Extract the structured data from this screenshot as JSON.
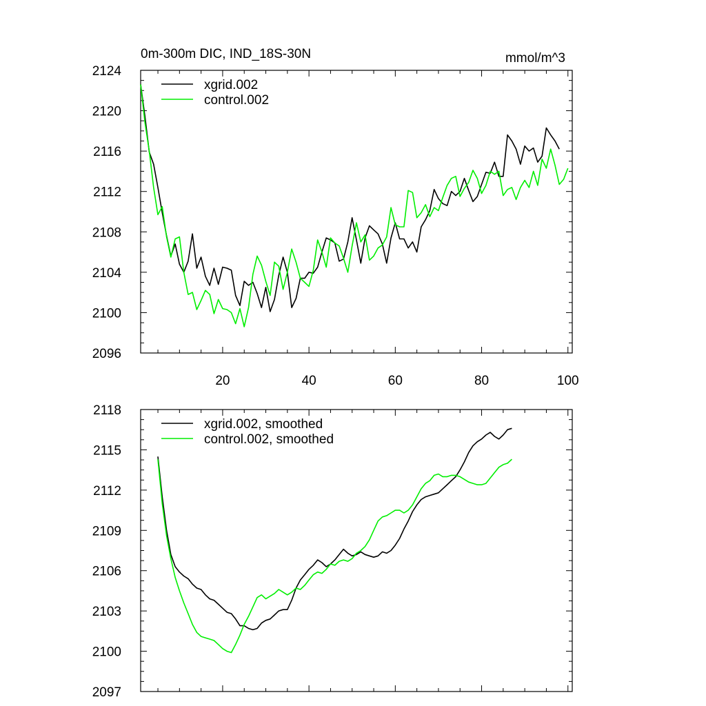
{
  "chart_data": [
    {
      "type": "line",
      "title": "0m-300m DIC, IND_18S-30N",
      "units": "mmol/m^3",
      "xlabel": "",
      "ylabel": "",
      "xlim": [
        1,
        101
      ],
      "ylim": [
        2096,
        2124
      ],
      "xticks": [
        20,
        40,
        60,
        80,
        100
      ],
      "yticks": [
        2096,
        2100,
        2104,
        2108,
        2112,
        2116,
        2120,
        2124
      ],
      "grid": false,
      "legend_position": "top-left",
      "series": [
        {
          "name": "xgrid.002",
          "color": "#000000",
          "x_start": 1,
          "values": [
            2122.6,
            2119.4,
            2115.9,
            2114.7,
            2112.4,
            2109.9,
            2107.6,
            2105.6,
            2106.8,
            2104.8,
            2104.0,
            2105.1,
            2107.8,
            2104.4,
            2105.5,
            2103.6,
            2102.7,
            2104.4,
            2102.8,
            2104.5,
            2104.4,
            2104.2,
            2101.7,
            2100.7,
            2103.1,
            2102.7,
            2103.0,
            2101.9,
            2100.5,
            2102.5,
            2100.1,
            2101.3,
            2103.7,
            2105.5,
            2104.0,
            2100.5,
            2101.4,
            2103.4,
            2103.4,
            2104.0,
            2103.9,
            2104.5,
            2106.0,
            2107.4,
            2107.2,
            2106.9,
            2105.1,
            2105.3,
            2107.0,
            2109.4,
            2107.2,
            2104.9,
            2107.4,
            2108.6,
            2108.2,
            2107.8,
            2106.8,
            2104.9,
            2107.4,
            2108.9,
            2107.3,
            2107.3,
            2106.4,
            2107.0,
            2106.0,
            2108.5,
            2109.2,
            2110.1,
            2112.2,
            2111.3,
            2110.8,
            2110.6,
            2112.0,
            2111.6,
            2112.0,
            2113.3,
            2112.1,
            2111.0,
            2111.5,
            2112.7,
            2113.9,
            2113.8,
            2114.9,
            2113.5,
            2113.5,
            2117.6,
            2117.0,
            2116.2,
            2114.7,
            2116.5,
            2116.0,
            2116.3,
            2114.9,
            2115.5,
            2118.3,
            2117.6,
            2117.0,
            2116.2
          ]
        },
        {
          "name": "control.002",
          "color": "#00ee00",
          "x_start": 1,
          "values": [
            2122.6,
            2118.8,
            2116.0,
            2112.4,
            2109.7,
            2110.5,
            2107.5,
            2105.5,
            2107.3,
            2107.5,
            2104.0,
            2101.8,
            2102.0,
            2100.3,
            2101.2,
            2102.2,
            2101.8,
            2099.9,
            2101.3,
            2100.4,
            2100.3,
            2100.0,
            2098.9,
            2100.4,
            2098.6,
            2100.5,
            2103.8,
            2105.6,
            2104.7,
            2103.1,
            2101.7,
            2105.0,
            2104.6,
            2102.3,
            2104.0,
            2106.3,
            2105.0,
            2103.4,
            2103.0,
            2102.6,
            2104.2,
            2107.2,
            2106.0,
            2104.5,
            2107.4,
            2106.9,
            2106.6,
            2105.4,
            2104.0,
            2106.6,
            2108.9,
            2107.0,
            2107.7,
            2105.2,
            2105.6,
            2106.4,
            2106.7,
            2107.5,
            2110.4,
            2108.7,
            2108.5,
            2108.5,
            2112.1,
            2111.9,
            2109.4,
            2109.9,
            2110.7,
            2109.5,
            2110.4,
            2110.1,
            2111.4,
            2112.6,
            2113.3,
            2113.5,
            2111.5,
            2112.3,
            2112.9,
            2114.1,
            2113.3,
            2111.8,
            2112.6,
            2114.0,
            2113.7,
            2114.0,
            2111.6,
            2112.2,
            2112.4,
            2111.2,
            2112.4,
            2113.1,
            2112.4,
            2114.0,
            2112.6,
            2115.2,
            2114.3,
            2116.2,
            2114.6,
            2112.7,
            2113.2,
            2114.3
          ]
        }
      ]
    },
    {
      "type": "line",
      "title": "",
      "xlabel": "",
      "ylabel": "",
      "xlim": [
        1,
        101
      ],
      "ylim": [
        2097,
        2118
      ],
      "xticks": [
        20,
        40,
        60,
        80,
        100
      ],
      "yticks": [
        2097,
        2100,
        2103,
        2106,
        2109,
        2112,
        2115,
        2118
      ],
      "grid": false,
      "legend_position": "top-left",
      "series": [
        {
          "name": "xgrid.002, smoothed",
          "color": "#000000",
          "x_start": 5,
          "values": [
            2114.5,
            2111.5,
            2109.0,
            2107.2,
            2106.3,
            2105.9,
            2105.6,
            2105.4,
            2105.0,
            2104.7,
            2104.6,
            2104.2,
            2103.9,
            2103.8,
            2103.5,
            2103.2,
            2102.9,
            2102.8,
            2102.4,
            2101.9,
            2101.9,
            2101.7,
            2101.6,
            2101.7,
            2102.1,
            2102.3,
            2102.4,
            2102.7,
            2103.0,
            2103.1,
            2103.1,
            2103.8,
            2104.7,
            2105.3,
            2105.7,
            2106.1,
            2106.4,
            2106.8,
            2106.6,
            2106.3,
            2106.5,
            2106.8,
            2107.2,
            2107.6,
            2107.3,
            2107.1,
            2107.2,
            2107.4,
            2107.2,
            2107.1,
            2107.0,
            2107.1,
            2107.4,
            2107.3,
            2107.5,
            2107.9,
            2108.4,
            2109.1,
            2109.7,
            2110.4,
            2110.9,
            2111.3,
            2111.5,
            2111.6,
            2111.7,
            2111.8,
            2112.1,
            2112.4,
            2112.7,
            2113.0,
            2113.5,
            2114.1,
            2114.8,
            2115.3,
            2115.6,
            2115.8,
            2116.1,
            2116.3,
            2116.0,
            2115.8,
            2116.1,
            2116.5,
            2116.6
          ]
        },
        {
          "name": "control.002, smoothed",
          "color": "#00ee00",
          "x_start": 5,
          "values": [
            2114.3,
            2111.0,
            2108.6,
            2106.9,
            2105.5,
            2104.5,
            2103.6,
            2102.8,
            2102.0,
            2101.4,
            2101.1,
            2101.0,
            2100.9,
            2100.8,
            2100.5,
            2100.2,
            2100.0,
            2099.9,
            2100.5,
            2101.2,
            2102.0,
            2102.6,
            2103.3,
            2104.0,
            2104.2,
            2103.9,
            2104.1,
            2104.3,
            2104.6,
            2104.4,
            2104.2,
            2104.4,
            2104.7,
            2104.6,
            2104.9,
            2105.3,
            2105.7,
            2105.9,
            2105.8,
            2106.1,
            2106.5,
            2106.4,
            2106.7,
            2106.8,
            2106.7,
            2106.9,
            2107.3,
            2107.5,
            2107.8,
            2108.3,
            2109.0,
            2109.7,
            2110.0,
            2110.1,
            2110.3,
            2110.5,
            2110.5,
            2110.3,
            2110.5,
            2110.9,
            2111.5,
            2112.1,
            2112.5,
            2112.7,
            2113.1,
            2113.2,
            2113.0,
            2113.0,
            2113.1,
            2113.1,
            2113.0,
            2112.8,
            2112.6,
            2112.5,
            2112.4,
            2112.4,
            2112.5,
            2112.9,
            2113.3,
            2113.7,
            2113.9,
            2114.0,
            2114.3
          ]
        }
      ]
    }
  ]
}
